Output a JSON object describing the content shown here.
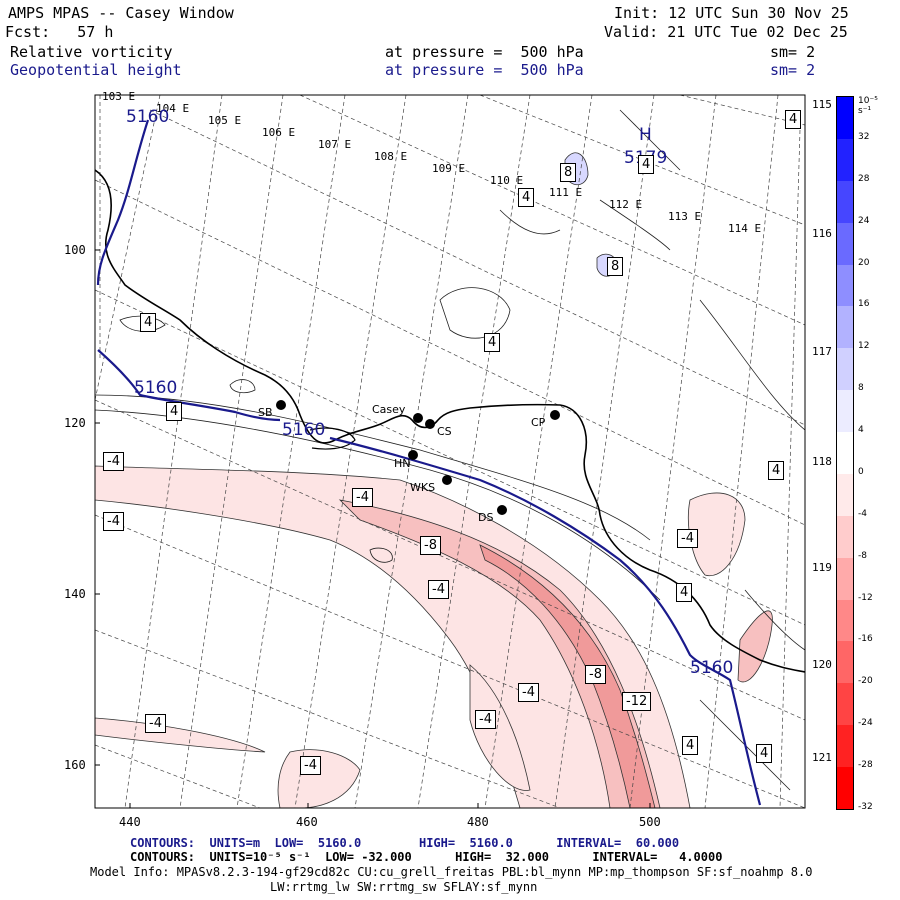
{
  "header": {
    "model": "AMPS MPAS -- Casey Window",
    "init": "Init: 12 UTC Sun 30 Nov 25",
    "fcst": "Fcst:   57 h",
    "valid": "Valid: 21 UTC Tue 02 Dec 25",
    "field1": "Relative vorticity",
    "field1_level": "at pressure =  500 hPa",
    "field1_sm": "sm= 2",
    "field2": "Geopotential height",
    "field2_level": "at pressure =  500 hPa",
    "field2_sm": "sm= 2"
  },
  "map": {
    "lon_labels_top": [
      "103 E",
      "104 E",
      "105 E",
      "106 E",
      "107 E",
      "108 E",
      "109 E",
      "110 E",
      "111 E",
      "112 E",
      "113 E",
      "114 E"
    ],
    "lon_labels_right": [
      "115 E",
      "116 E",
      "117 E",
      "118 E",
      "119 E",
      "120 E",
      "121 E"
    ],
    "y_axis_ticks": [
      "100",
      "120",
      "140",
      "160"
    ],
    "x_axis_ticks": [
      "440",
      "460",
      "480",
      "500"
    ],
    "stations": [
      {
        "name": "Casey"
      },
      {
        "name": "CS"
      },
      {
        "name": "SB"
      },
      {
        "name": "CP"
      },
      {
        "name": "HN"
      },
      {
        "name": "WKS"
      },
      {
        "name": "DS"
      }
    ],
    "geopotential_labels": [
      "5160",
      "5160",
      "5160",
      "5160",
      "5179"
    ],
    "high_marker": "H",
    "vorticity_labels": [
      "4",
      "4",
      "8",
      "8",
      "4",
      "4",
      "4",
      "4",
      "4",
      "4",
      "4",
      "4",
      "-4",
      "-4",
      "-4",
      "-8",
      "-4",
      "-4",
      "-8",
      "-12",
      "-4",
      "-4",
      "-4",
      "-4"
    ],
    "colors": {
      "negative_fill": "#f4a0a0",
      "positive_fill": "#d8d8ff",
      "height_contour": "#1a1a8c",
      "coast": "#000000"
    }
  },
  "colorbar": {
    "unit": "10⁻⁵ s⁻¹",
    "ticks": [
      "32",
      "28",
      "24",
      "20",
      "16",
      "12",
      "8",
      "4",
      "0",
      "-4",
      "-8",
      "-12",
      "-16",
      "-20",
      "-24",
      "-28",
      "-32"
    ],
    "colors": [
      "#0000ff",
      "#2222ff",
      "#4646ff",
      "#6a6aff",
      "#8e8eff",
      "#b2b2ff",
      "#d0d0ff",
      "#ececff",
      "#ffffff",
      "#ffeaea",
      "#ffcccc",
      "#ffaaaa",
      "#ff8888",
      "#ff6666",
      "#ff4444",
      "#ff2222",
      "#ff0000"
    ]
  },
  "footer": {
    "contours1": "CONTOURS:  UNITS=m  LOW=  5160.0        HIGH=  5160.0      INTERVAL=  60.000",
    "contours2": "CONTOURS:  UNITS=10⁻⁵ s⁻¹  LOW= -32.000      HIGH=  32.000      INTERVAL=   4.0000",
    "model_info": "Model Info: MPASv8.2.3-194-gf29cd82c CU:cu_grell_freitas PBL:bl_mynn MP:mp_thompson SF:sf_noahmp 8.0",
    "model_info2": "LW:rrtmg_lw SW:rrtmg_sw SFLAY:sf_mynn"
  }
}
